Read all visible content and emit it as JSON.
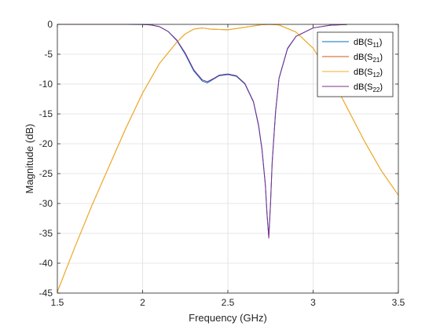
{
  "chart_data": {
    "type": "line",
    "xlabel": "Frequency (GHz)",
    "ylabel": "Magnitude (dB)",
    "xlim": [
      1.5,
      3.5
    ],
    "ylim": [
      -45,
      0
    ],
    "xticks": [
      1.5,
      2,
      2.5,
      3,
      3.5
    ],
    "yticks": [
      0,
      -5,
      -10,
      -15,
      -20,
      -25,
      -30,
      -35,
      -40,
      -45
    ],
    "xtick_labels": [
      "1.5",
      "2",
      "2.5",
      "3",
      "3.5"
    ],
    "ytick_labels": [
      "0",
      "-5",
      "-10",
      "-15",
      "-20",
      "-25",
      "-30",
      "-35",
      "-40",
      "-45"
    ],
    "grid": true,
    "legend_position": "top-right",
    "series": [
      {
        "name": "dB(S11)",
        "label_main": "dB(S",
        "label_sub": "11",
        "label_end": ")",
        "color": "#0072BD",
        "x": [
          1.5,
          1.9,
          2.0,
          2.05,
          2.1,
          2.15,
          2.2,
          2.25,
          2.3,
          2.35,
          2.38,
          2.42,
          2.45,
          2.5,
          2.55,
          2.6,
          2.65,
          2.68,
          2.7,
          2.72,
          2.73,
          2.74,
          2.75,
          2.76,
          2.78,
          2.8,
          2.85,
          2.9,
          3.0,
          3.1,
          3.2
        ],
        "y": [
          0,
          0,
          -0.02,
          -0.1,
          -0.4,
          -1.2,
          -2.7,
          -5.0,
          -7.8,
          -9.5,
          -9.8,
          -9.1,
          -8.6,
          -8.4,
          -8.7,
          -10.0,
          -13.0,
          -17.0,
          -21.0,
          -27.0,
          -32.0,
          -35.5,
          -30.0,
          -23.0,
          -14.5,
          -9.0,
          -4.0,
          -2.0,
          -0.6,
          -0.15,
          -0.02
        ]
      },
      {
        "name": "dB(S21)",
        "label_main": "dB(S",
        "label_sub": "21",
        "label_end": ")",
        "color": "#D95319",
        "x": [
          1.5,
          1.6,
          1.7,
          1.8,
          1.9,
          2.0,
          2.1,
          2.2,
          2.25,
          2.3,
          2.35,
          2.4,
          2.5,
          2.6,
          2.7,
          2.75,
          2.8,
          2.9,
          3.0,
          3.1,
          3.2,
          3.3,
          3.4,
          3.5
        ],
        "y": [
          -44.8,
          -37.5,
          -30.5,
          -24.0,
          -17.5,
          -11.5,
          -6.5,
          -3.0,
          -1.6,
          -0.8,
          -0.6,
          -0.8,
          -0.9,
          -0.5,
          -0.05,
          0,
          -0.1,
          -1.3,
          -4.0,
          -8.5,
          -14.0,
          -19.5,
          -24.5,
          -28.6
        ]
      },
      {
        "name": "dB(S12)",
        "label_main": "dB(S",
        "label_sub": "12",
        "label_end": ")",
        "color": "#EDB120",
        "x": [
          1.5,
          1.6,
          1.7,
          1.8,
          1.9,
          2.0,
          2.1,
          2.2,
          2.25,
          2.3,
          2.35,
          2.4,
          2.5,
          2.6,
          2.7,
          2.75,
          2.8,
          2.9,
          3.0,
          3.1,
          3.2,
          3.3,
          3.4,
          3.5
        ],
        "y": [
          -44.8,
          -37.5,
          -30.5,
          -24.0,
          -17.5,
          -11.5,
          -6.5,
          -3.0,
          -1.6,
          -0.8,
          -0.6,
          -0.8,
          -0.9,
          -0.5,
          -0.05,
          0,
          -0.1,
          -1.3,
          -4.0,
          -8.5,
          -14.0,
          -19.5,
          -24.5,
          -28.6
        ]
      },
      {
        "name": "dB(S22)",
        "label_main": "dB(S",
        "label_sub": "22",
        "label_end": ")",
        "color": "#7E2F8E",
        "x": [
          1.5,
          1.9,
          2.0,
          2.05,
          2.1,
          2.15,
          2.2,
          2.25,
          2.3,
          2.35,
          2.38,
          2.42,
          2.45,
          2.5,
          2.55,
          2.6,
          2.65,
          2.68,
          2.7,
          2.72,
          2.73,
          2.74,
          2.75,
          2.76,
          2.78,
          2.8,
          2.85,
          2.9,
          3.0,
          3.1,
          3.2
        ],
        "y": [
          0,
          0,
          -0.02,
          -0.1,
          -0.4,
          -1.2,
          -2.6,
          -4.8,
          -7.6,
          -9.3,
          -9.6,
          -9.0,
          -8.5,
          -8.3,
          -8.6,
          -9.9,
          -12.9,
          -16.8,
          -20.8,
          -26.8,
          -31.8,
          -35.8,
          -30.3,
          -23.2,
          -14.7,
          -9.1,
          -4.1,
          -2.0,
          -0.6,
          -0.15,
          -0.02
        ]
      }
    ]
  }
}
